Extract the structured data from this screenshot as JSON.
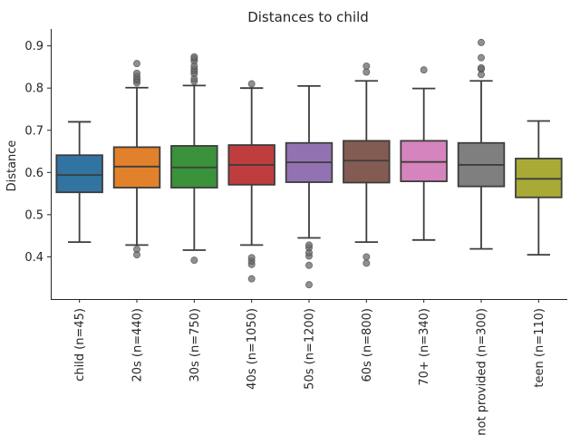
{
  "chart_data": {
    "type": "box",
    "title": "Distances to child",
    "xlabel": "",
    "ylabel": "Distance",
    "ylim": [
      0.3,
      0.94
    ],
    "yticks": [
      0.4,
      0.5,
      0.6,
      0.7,
      0.8,
      0.9
    ],
    "ytick_labels": [
      "0.4",
      "0.5",
      "0.6",
      "0.7",
      "0.8",
      "0.9"
    ],
    "grid": false,
    "categories": [
      "child (n=45)",
      "20s (n=440)",
      "30s (n=750)",
      "40s (n=1050)",
      "50s (n=1200)",
      "60s (n=800)",
      "70+ (n=340)",
      "not provided (n=300)",
      "teen (n=110)"
    ],
    "boxes": [
      {
        "color": "#3274a1",
        "whisker_low": 0.435,
        "q1": 0.553,
        "median": 0.594,
        "q3": 0.641,
        "whisker_high": 0.72,
        "fliers": []
      },
      {
        "color": "#e1812c",
        "whisker_low": 0.428,
        "q1": 0.564,
        "median": 0.614,
        "q3": 0.66,
        "whisker_high": 0.801,
        "fliers": [
          0.405,
          0.418,
          0.812,
          0.818,
          0.822,
          0.828,
          0.835,
          0.858
        ]
      },
      {
        "color": "#3a923a",
        "whisker_low": 0.416,
        "q1": 0.564,
        "median": 0.612,
        "q3": 0.663,
        "whisker_high": 0.806,
        "fliers": [
          0.392,
          0.816,
          0.822,
          0.834,
          0.84,
          0.845,
          0.852,
          0.864,
          0.87,
          0.874
        ]
      },
      {
        "color": "#c03d3e",
        "whisker_low": 0.428,
        "q1": 0.571,
        "median": 0.618,
        "q3": 0.665,
        "whisker_high": 0.8,
        "fliers": [
          0.348,
          0.382,
          0.39,
          0.398,
          0.81
        ]
      },
      {
        "color": "#9372b2",
        "whisker_low": 0.445,
        "q1": 0.577,
        "median": 0.624,
        "q3": 0.67,
        "whisker_high": 0.805,
        "fliers": [
          0.334,
          0.38,
          0.402,
          0.41,
          0.422,
          0.428
        ]
      },
      {
        "color": "#845b53",
        "whisker_low": 0.435,
        "q1": 0.576,
        "median": 0.628,
        "q3": 0.675,
        "whisker_high": 0.817,
        "fliers": [
          0.385,
          0.4,
          0.838,
          0.852
        ]
      },
      {
        "color": "#d684bd",
        "whisker_low": 0.44,
        "q1": 0.579,
        "median": 0.625,
        "q3": 0.675,
        "whisker_high": 0.799,
        "fliers": [
          0.843
        ]
      },
      {
        "color": "#7f7f7f",
        "whisker_low": 0.419,
        "q1": 0.567,
        "median": 0.618,
        "q3": 0.67,
        "whisker_high": 0.817,
        "fliers": [
          0.832,
          0.845,
          0.848,
          0.872,
          0.908
        ]
      },
      {
        "color": "#a9aa35",
        "whisker_low": 0.405,
        "q1": 0.541,
        "median": 0.585,
        "q3": 0.633,
        "whisker_high": 0.722,
        "fliers": []
      }
    ]
  }
}
